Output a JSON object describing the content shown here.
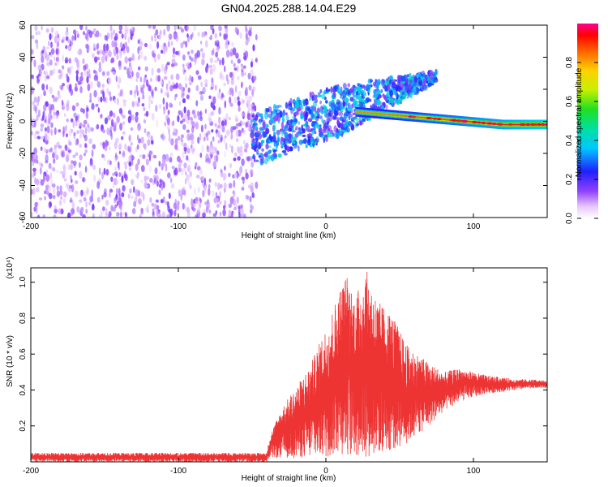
{
  "title": "GN04.2025.288.14.04.E29",
  "chart_data": [
    {
      "type": "heatmap",
      "title": "GN04.2025.288.14.04.E29",
      "xlabel": "Height of straight line (km)",
      "ylabel": "Frequency (Hz)",
      "xlim": [
        -200,
        150
      ],
      "ylim": [
        -60,
        60
      ],
      "xticks": [
        -200,
        -100,
        0,
        100
      ],
      "yticks": [
        -60,
        -40,
        -20,
        0,
        20,
        40,
        60
      ],
      "colorbar": {
        "label": "Normalized spectral amplitude",
        "range": [
          0.0,
          1.0
        ],
        "ticks": [
          "0.0",
          "0.2",
          "0.4",
          "0.6",
          "0.8"
        ]
      },
      "features": [
        {
          "name": "broadband noise",
          "x_range": [
            -200,
            -50
          ],
          "amplitude": 0.1
        },
        {
          "name": "signal onset",
          "x": -50
        },
        {
          "name": "carrier line",
          "x_range": [
            20,
            150
          ],
          "y_start": 6,
          "y_end": -2,
          "peak_amplitude": 1.0
        }
      ]
    },
    {
      "type": "line",
      "xlabel": "Height of straight line (km)",
      "ylabel": "SNR (10 * v/v)",
      "multiplier": "(x10⁴)",
      "xlim": [
        -200,
        150
      ],
      "ylim": [
        0,
        1.08
      ],
      "xticks": [
        -200,
        -100,
        0,
        100
      ],
      "yticks": [
        "0.2",
        "0.4",
        "0.6",
        "0.8",
        "1.0"
      ],
      "color": "#ee3333",
      "envelope": {
        "x": [
          -200,
          -40,
          -38,
          -30,
          -20,
          -10,
          0,
          10,
          14,
          20,
          27,
          35,
          45,
          55,
          70,
          80,
          90,
          100,
          110,
          120,
          130,
          140,
          150
        ],
        "upper": [
          0.05,
          0.05,
          0.15,
          0.3,
          0.42,
          0.55,
          0.75,
          0.98,
          1.05,
          0.92,
          1.08,
          0.9,
          0.82,
          0.65,
          0.55,
          0.5,
          0.52,
          0.5,
          0.48,
          0.47,
          0.46,
          0.46,
          0.45
        ],
        "lower": [
          0.0,
          0.0,
          0.02,
          0.02,
          0.02,
          0.02,
          0.02,
          0.04,
          0.04,
          0.02,
          0.02,
          0.04,
          0.06,
          0.1,
          0.2,
          0.28,
          0.33,
          0.36,
          0.38,
          0.39,
          0.4,
          0.41,
          0.41
        ]
      }
    }
  ]
}
